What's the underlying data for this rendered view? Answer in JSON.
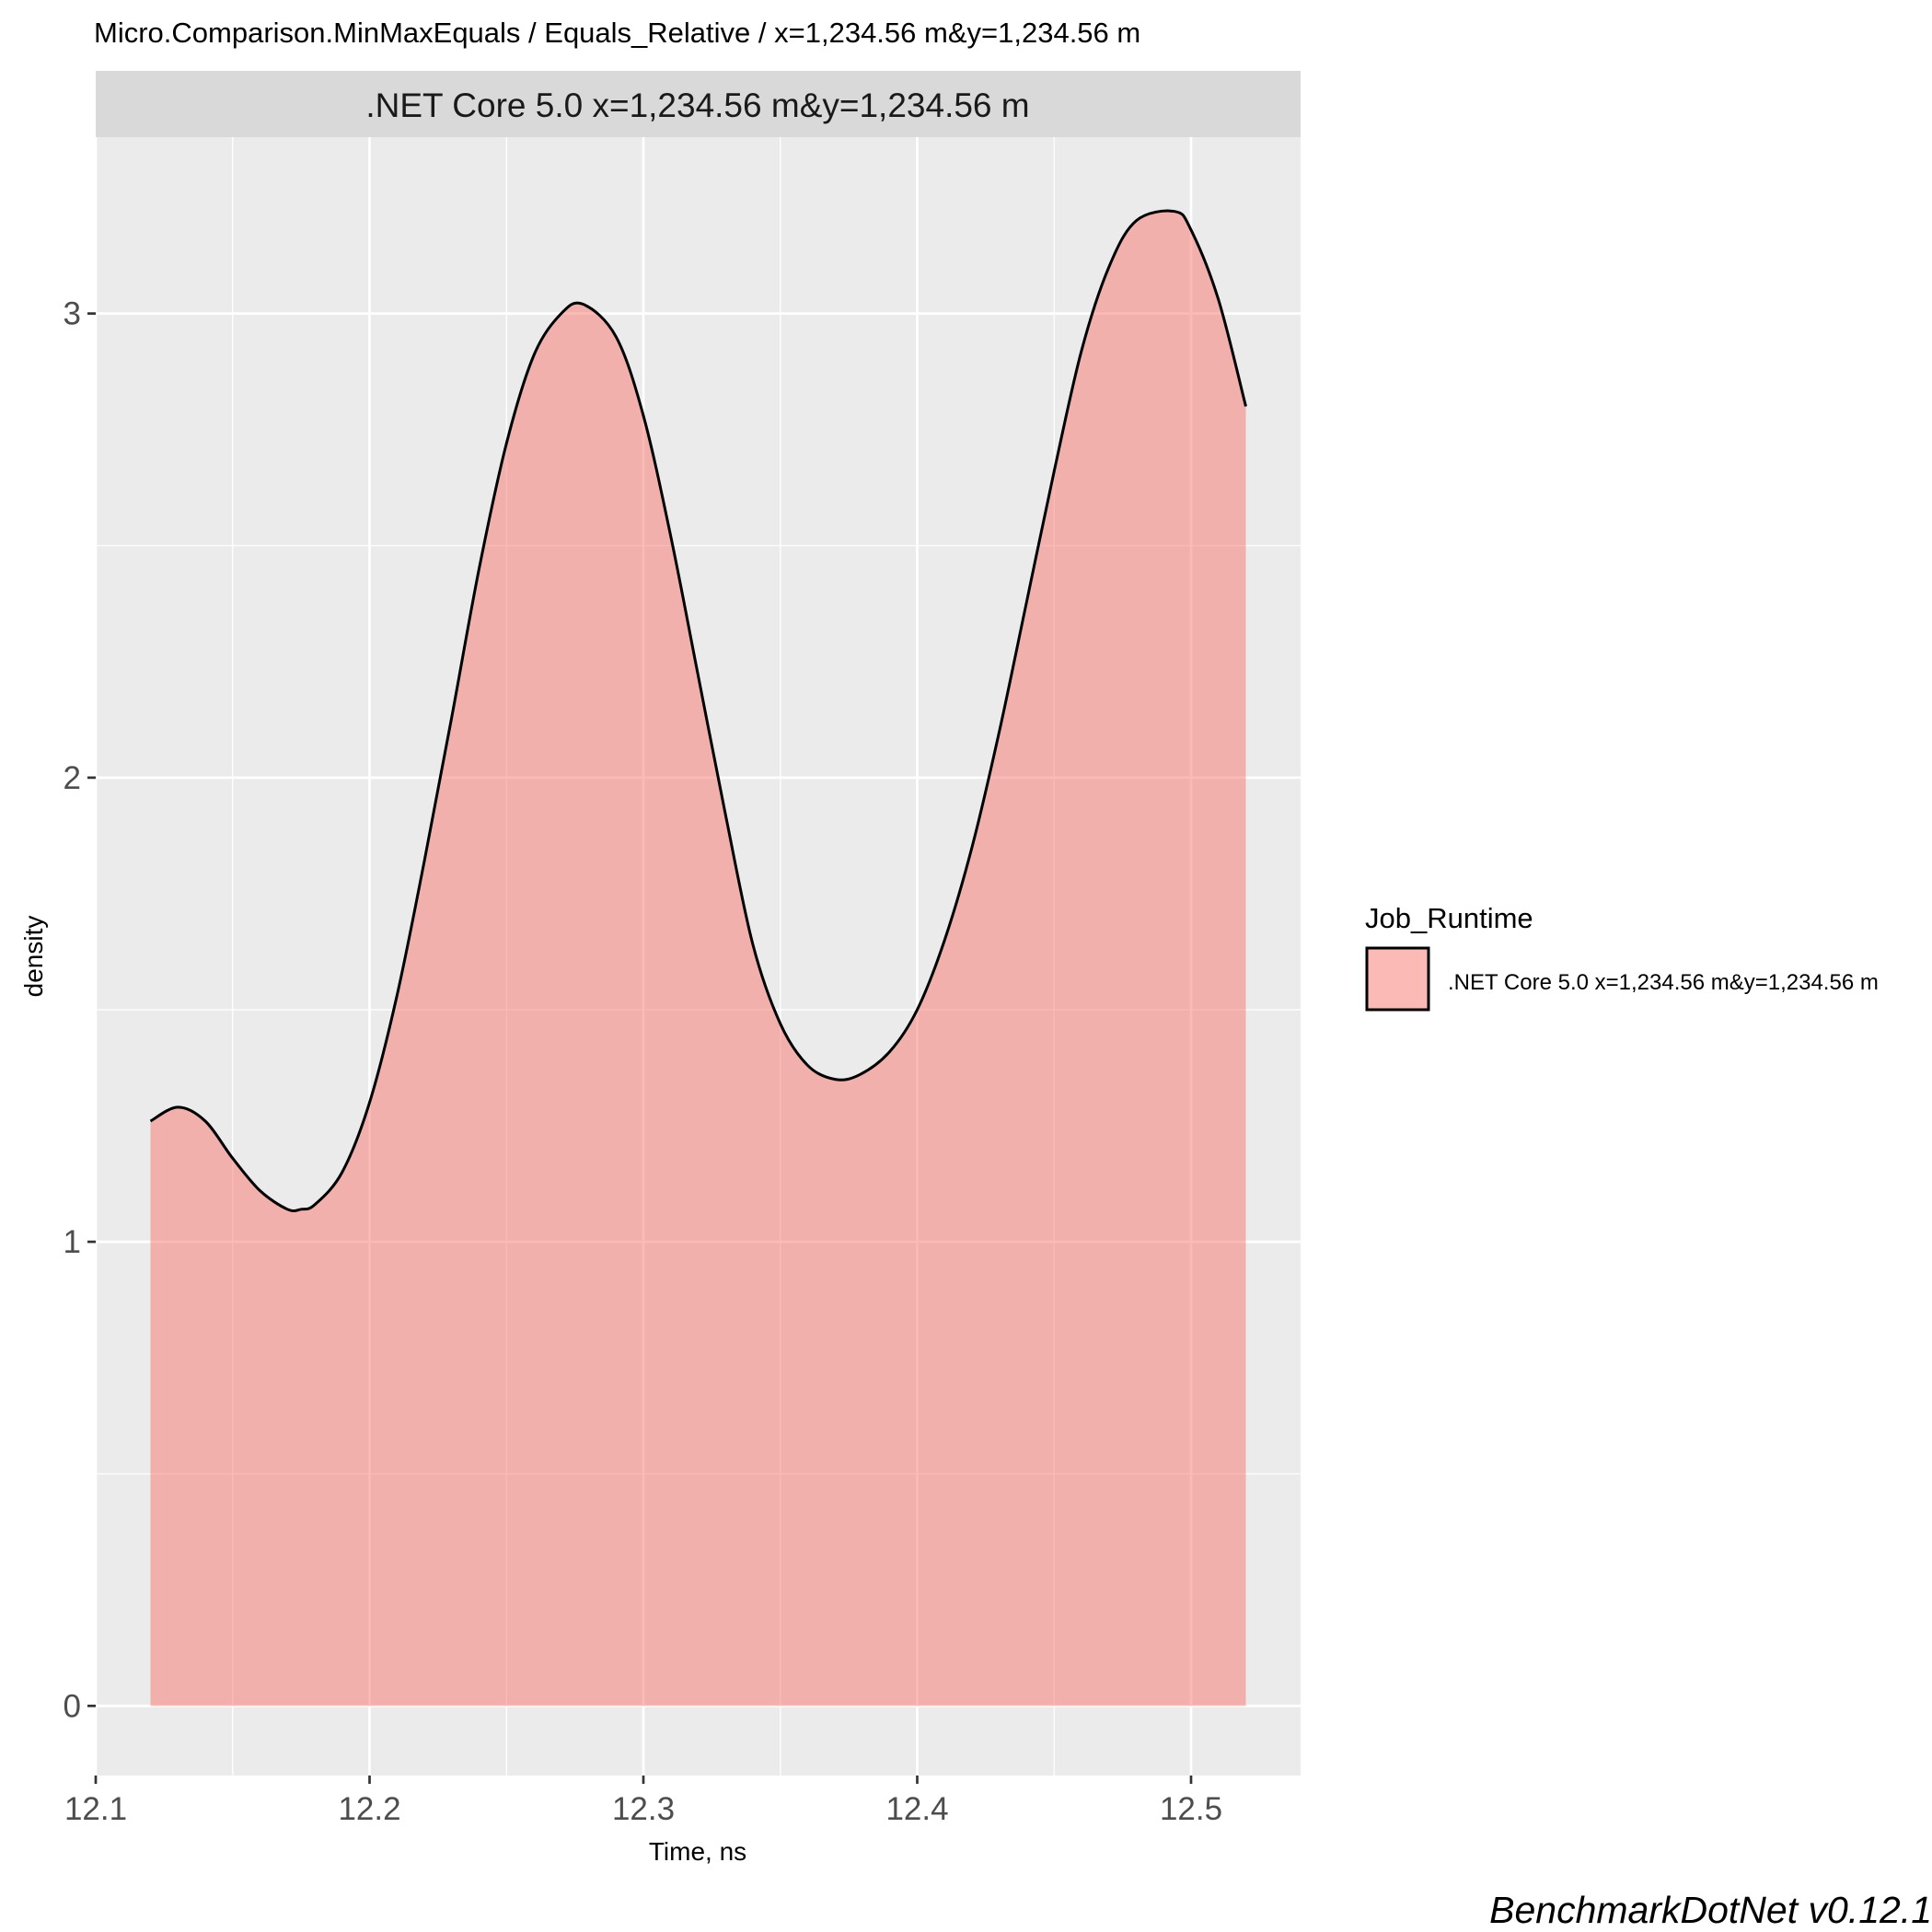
{
  "chart_data": {
    "type": "area",
    "title": "Micro.Comparison.MinMaxEquals / Equals_Relative / x=1,234.56 m&y=1,234.56 m",
    "facet_label": ".NET Core 5.0 x=1,234.56 m&y=1,234.56 m",
    "xlabel": "Time, ns",
    "ylabel": "density",
    "xlim": [
      12.1,
      12.54
    ],
    "ylim": [
      -0.15,
      3.38
    ],
    "x_ticks": [
      12.1,
      12.2,
      12.3,
      12.4,
      12.5
    ],
    "x_tick_labels": [
      "12.1",
      "12.2",
      "12.3",
      "12.4",
      "12.5"
    ],
    "y_ticks": [
      0,
      1,
      2,
      3
    ],
    "y_tick_labels": [
      "0",
      "1",
      "2",
      "3"
    ],
    "grid": true,
    "legend": {
      "title": "Job_Runtime",
      "placement": "right",
      "entries": [
        ".NET Core 5.0 x=1,234.56 m&y=1,234.56 m"
      ]
    },
    "series": [
      {
        "name": ".NET Core 5.0 x=1,234.56 m&y=1,234.56 m",
        "fill": "#F8766D",
        "fill_opacity": 0.5,
        "line": "#000000",
        "x": [
          12.12,
          12.13,
          12.14,
          12.15,
          12.16,
          12.17,
          12.175,
          12.18,
          12.19,
          12.2,
          12.21,
          12.22,
          12.23,
          12.24,
          12.25,
          12.26,
          12.27,
          12.278,
          12.29,
          12.3,
          12.31,
          12.32,
          12.33,
          12.34,
          12.35,
          12.36,
          12.37,
          12.379,
          12.39,
          12.4,
          12.41,
          12.42,
          12.43,
          12.44,
          12.45,
          12.46,
          12.47,
          12.48,
          12.494,
          12.5,
          12.51,
          12.52
        ],
        "y": [
          1.26,
          1.29,
          1.26,
          1.18,
          1.11,
          1.07,
          1.07,
          1.08,
          1.15,
          1.3,
          1.53,
          1.82,
          2.13,
          2.45,
          2.72,
          2.91,
          3.0,
          3.02,
          2.95,
          2.78,
          2.52,
          2.22,
          1.92,
          1.64,
          1.47,
          1.38,
          1.35,
          1.36,
          1.41,
          1.5,
          1.65,
          1.85,
          2.1,
          2.38,
          2.66,
          2.92,
          3.1,
          3.2,
          3.22,
          3.18,
          3.03,
          2.8
        ]
      }
    ]
  },
  "caption": "BenchmarkDotNet v0.12.1"
}
